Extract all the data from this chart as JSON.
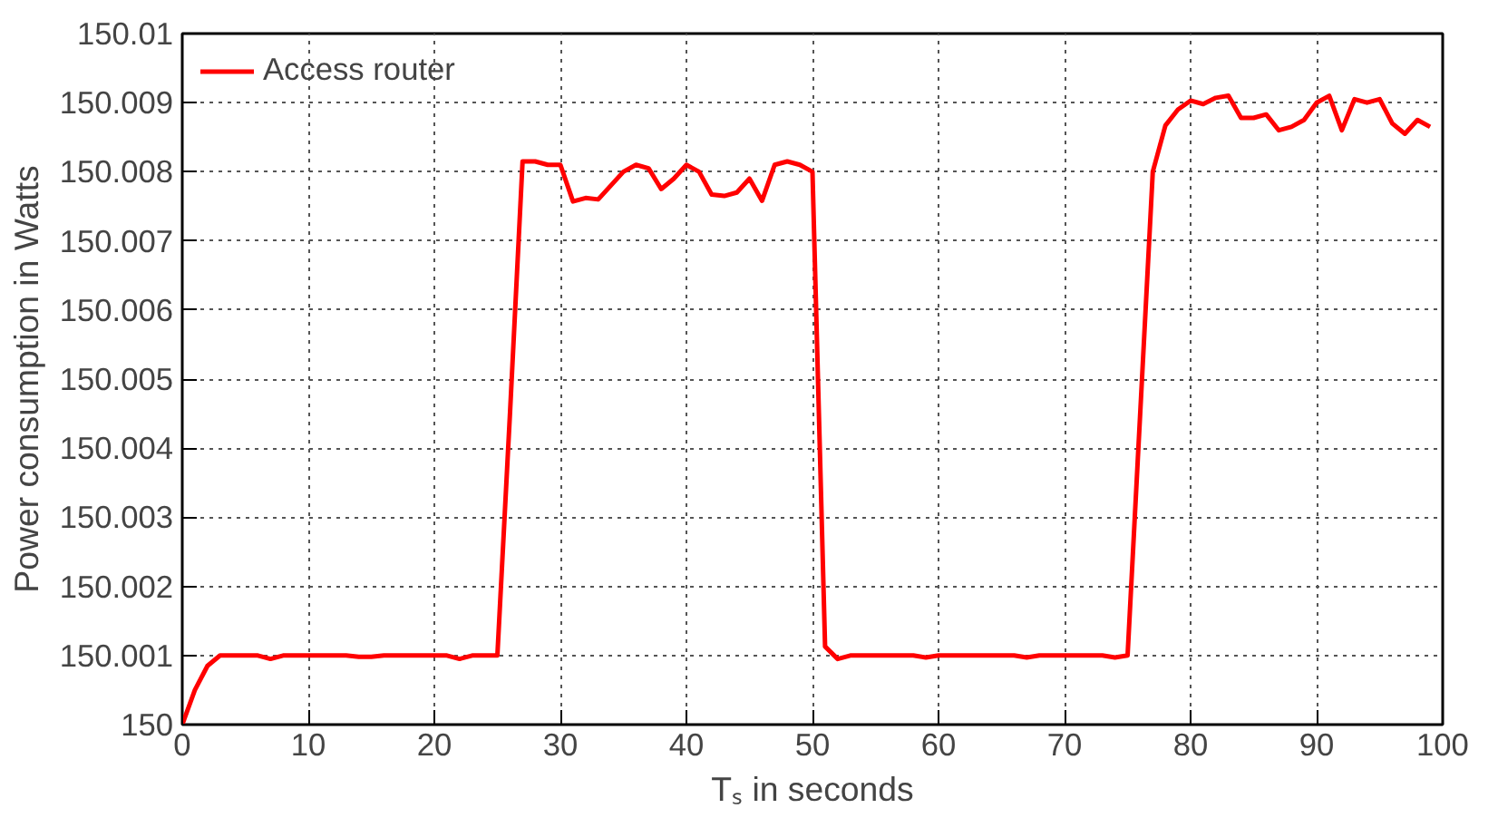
{
  "chart_data": {
    "type": "line",
    "xlabel": "Tₛ in seconds",
    "ylabel": "Power consumption in Watts",
    "x": [
      0,
      1,
      2,
      3,
      4,
      5,
      6,
      7,
      8,
      9,
      10,
      11,
      12,
      13,
      14,
      15,
      16,
      17,
      18,
      19,
      20,
      21,
      22,
      23,
      24,
      25,
      26,
      27,
      28,
      29,
      30,
      31,
      32,
      33,
      34,
      35,
      36,
      37,
      38,
      39,
      40,
      41,
      42,
      43,
      44,
      45,
      46,
      47,
      48,
      49,
      50,
      51,
      52,
      53,
      54,
      55,
      56,
      57,
      58,
      59,
      60,
      61,
      62,
      63,
      64,
      65,
      66,
      67,
      68,
      69,
      70,
      71,
      72,
      73,
      74,
      75,
      76,
      77,
      78,
      79,
      80,
      81,
      82,
      83,
      84,
      85,
      86,
      87,
      88,
      89,
      90,
      91,
      92,
      93,
      94,
      95,
      96,
      97,
      98,
      99
    ],
    "series": [
      {
        "name": "Access router",
        "color": "#ff0000",
        "values": [
          150.0,
          150.0005,
          150.00085,
          150.001,
          150.001,
          150.001,
          150.001,
          150.00095,
          150.001,
          150.001,
          150.001,
          150.001,
          150.001,
          150.001,
          150.00098,
          150.00098,
          150.001,
          150.001,
          150.001,
          150.001,
          150.001,
          150.001,
          150.00095,
          150.001,
          150.001,
          150.001,
          150.0045,
          150.00815,
          150.00815,
          150.0081,
          150.0081,
          150.00757,
          150.00762,
          150.0076,
          150.0078,
          150.008,
          150.0081,
          150.00805,
          150.00775,
          150.0079,
          150.0081,
          150.008,
          150.00767,
          150.00765,
          150.0077,
          150.0079,
          150.00758,
          150.0081,
          150.00815,
          150.0081,
          150.008,
          150.00113,
          150.00095,
          150.001,
          150.001,
          150.001,
          150.001,
          150.001,
          150.001,
          150.00097,
          150.001,
          150.001,
          150.001,
          150.001,
          150.001,
          150.001,
          150.001,
          150.00097,
          150.001,
          150.001,
          150.001,
          150.001,
          150.001,
          150.001,
          150.00097,
          150.001,
          150.0045,
          150.008,
          150.00867,
          150.0089,
          150.00903,
          150.00898,
          150.00907,
          150.0091,
          150.00878,
          150.00878,
          150.00883,
          150.0086,
          150.00865,
          150.00875,
          150.009,
          150.0091,
          150.0086,
          150.00905,
          150.009,
          150.00905,
          150.0087,
          150.00855,
          150.00875,
          150.00865
        ]
      }
    ],
    "xlim": [
      0,
      100
    ],
    "xticks": [
      0,
      10,
      20,
      30,
      40,
      50,
      60,
      70,
      80,
      90,
      100
    ],
    "ylim": [
      150,
      150.01
    ],
    "yticks": [
      150,
      150.001,
      150.002,
      150.003,
      150.004,
      150.005,
      150.006,
      150.007,
      150.008,
      150.009,
      150.01
    ],
    "grid": true,
    "legend": "top left",
    "line_style": "solid",
    "marker": "none"
  }
}
